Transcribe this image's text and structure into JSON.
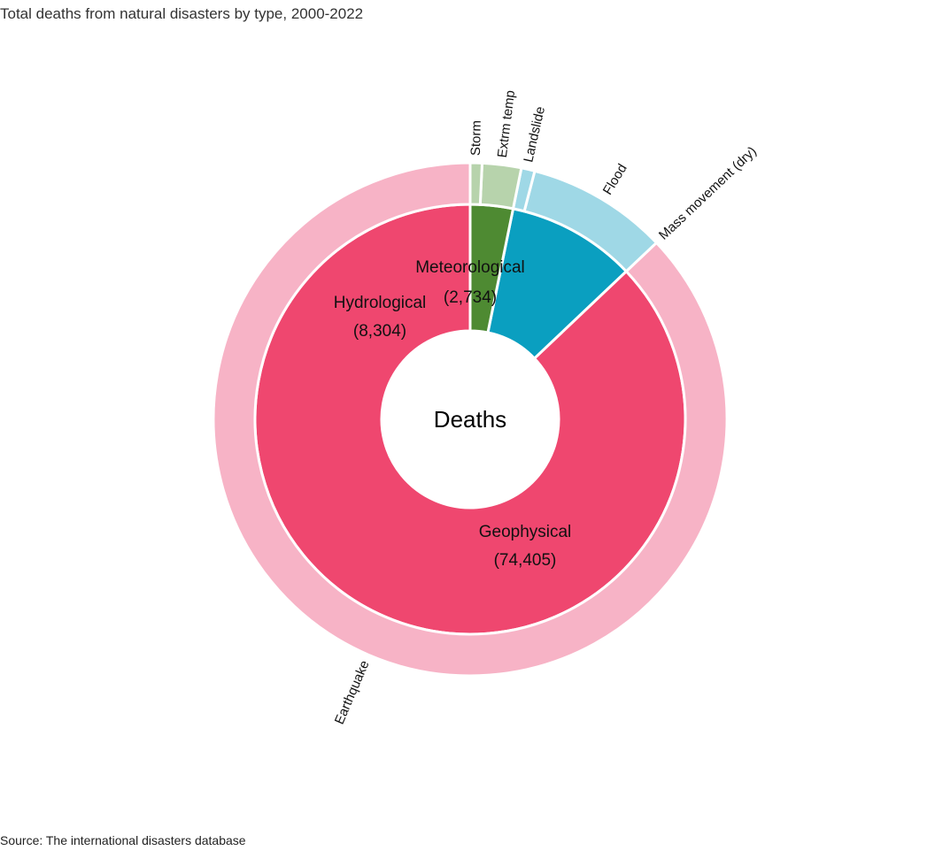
{
  "chart_data": {
    "type": "sunburst",
    "title": "Total deaths from natural disasters by type, 2000-2022",
    "source": "Source: The international disasters database",
    "center_label": "Deaths",
    "inner": [
      {
        "name": "Geophysical",
        "value": 74405,
        "value_label": "(74,405)",
        "color": "#ef476f"
      },
      {
        "name": "Hydrological",
        "value": 8304,
        "value_label": "(8,304)",
        "color": "#0a9fc0"
      },
      {
        "name": "Meteorological",
        "value": 2734,
        "value_label": "(2,734)",
        "color": "#4e8a32"
      }
    ],
    "outer": [
      {
        "name": "Earthquake",
        "parent": "Geophysical",
        "value": 74405,
        "color": "#f7b3c6"
      },
      {
        "name": "Mass movement (dry)",
        "parent": "Geophysical",
        "value": 0,
        "color": "#f7b3c6"
      },
      {
        "name": "Flood",
        "parent": "Hydrological",
        "value": 7580,
        "color": "#9fd8e6"
      },
      {
        "name": "Landslide",
        "parent": "Hydrological",
        "value": 724,
        "color": "#9fd8e6"
      },
      {
        "name": "Extrm temp",
        "parent": "Meteorological",
        "value": 2100,
        "color": "#b7d3ac"
      },
      {
        "name": "Storm",
        "parent": "Meteorological",
        "value": 634,
        "color": "#b7d3ac"
      }
    ]
  }
}
